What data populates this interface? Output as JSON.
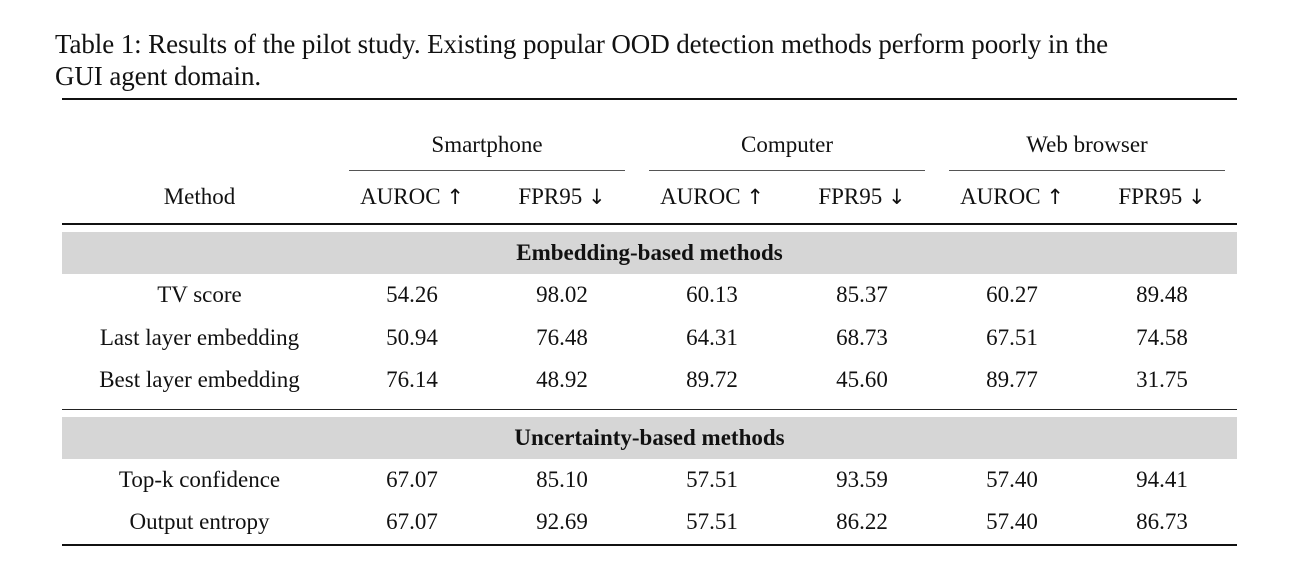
{
  "caption": {
    "line1": "Table 1: Results of the pilot study. Existing popular OOD detection methods perform poorly in the",
    "line2": "GUI agent domain."
  },
  "table": {
    "method_header": "Method",
    "groups": [
      "Smartphone",
      "Computer",
      "Web browser"
    ],
    "metrics": [
      {
        "label": "AUROC",
        "arrow": "↑"
      },
      {
        "label": "FPR95",
        "arrow": "↓"
      },
      {
        "label": "AUROC",
        "arrow": "↑"
      },
      {
        "label": "FPR95",
        "arrow": "↓"
      },
      {
        "label": "AUROC",
        "arrow": "↑"
      },
      {
        "label": "FPR95",
        "arrow": "↓"
      }
    ],
    "sections": [
      {
        "title": "Embedding-based methods",
        "rows": [
          {
            "method": "TV score",
            "values": [
              "54.26",
              "98.02",
              "60.13",
              "85.37",
              "60.27",
              "89.48"
            ]
          },
          {
            "method": "Last layer embedding",
            "values": [
              "50.94",
              "76.48",
              "64.31",
              "68.73",
              "67.51",
              "74.58"
            ]
          },
          {
            "method": "Best layer embedding",
            "values": [
              "76.14",
              "48.92",
              "89.72",
              "45.60",
              "89.77",
              "31.75"
            ]
          }
        ]
      },
      {
        "title": "Uncertainty-based methods",
        "rows": [
          {
            "method": "Top-k confidence",
            "values": [
              "67.07",
              "85.10",
              "57.51",
              "93.59",
              "57.40",
              "94.41"
            ]
          },
          {
            "method": "Output entropy",
            "values": [
              "67.07",
              "92.69",
              "57.51",
              "86.22",
              "57.40",
              "86.73"
            ]
          }
        ]
      }
    ]
  }
}
